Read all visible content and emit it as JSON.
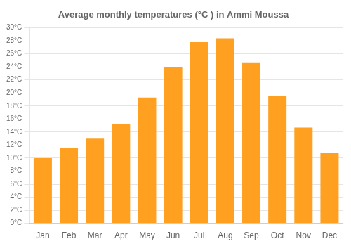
{
  "chart_data": {
    "type": "bar",
    "title": "Average monthly temperatures (°C ) in Ammi Moussa",
    "categories": [
      "Jan",
      "Feb",
      "Mar",
      "Apr",
      "May",
      "Jun",
      "Jul",
      "Aug",
      "Sep",
      "Oct",
      "Nov",
      "Dec"
    ],
    "values": [
      10,
      11.5,
      13,
      15.2,
      19.3,
      24,
      27.8,
      28.4,
      24.7,
      19.5,
      14.7,
      10.8
    ],
    "color": "#FFA020",
    "ylim": [
      0,
      30
    ],
    "yticks": [
      {
        "value": 0,
        "label": "0°C"
      },
      {
        "value": 2,
        "label": "2°C"
      },
      {
        "value": 4,
        "label": "4°C"
      },
      {
        "value": 6,
        "label": "6°C"
      },
      {
        "value": 8,
        "label": "8°C"
      },
      {
        "value": 10,
        "label": "10°C"
      },
      {
        "value": 12,
        "label": "12°C"
      },
      {
        "value": 14,
        "label": "14°C"
      },
      {
        "value": 16,
        "label": "16°C"
      },
      {
        "value": 18,
        "label": "18°C"
      },
      {
        "value": 20,
        "label": "20°C"
      },
      {
        "value": 22,
        "label": "22°C"
      },
      {
        "value": 24,
        "label": "24°C"
      },
      {
        "value": 26,
        "label": "26°C"
      },
      {
        "value": 28,
        "label": "28°C"
      },
      {
        "value": 30,
        "label": "30°C"
      }
    ],
    "grid": true
  }
}
